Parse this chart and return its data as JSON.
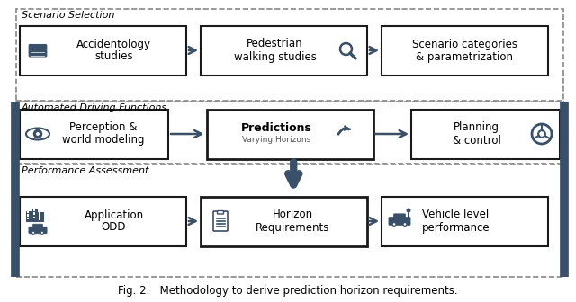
{
  "title": "Fig. 2.   Methodology to derive prediction horizon requirements.",
  "background_color": "#ffffff",
  "section_labels": [
    "Scenario Selection",
    "Automated Driving Functions",
    "Performance Assessment"
  ],
  "row1_boxes": [
    {
      "label": "Accidentology\nstudies"
    },
    {
      "label": "Pedestrian\nwalking studies"
    },
    {
      "label": "Scenario categories\n& parametrization"
    }
  ],
  "row2_boxes": [
    {
      "label": "Perception &\nworld modeling"
    },
    {
      "label": "Predictions\nVarying Horizons"
    },
    {
      "label": "Planning\n& control"
    }
  ],
  "row3_boxes": [
    {
      "label": "Application\nODD"
    },
    {
      "label": "Horizon\nRequirements"
    },
    {
      "label": "Vehicle level\nperformance"
    }
  ],
  "dark_color": "#3a5068",
  "box_border_color": "#1a1a1a",
  "dashed_border_color": "#888888",
  "fig_width": 6.4,
  "fig_height": 3.36,
  "dpi": 100
}
